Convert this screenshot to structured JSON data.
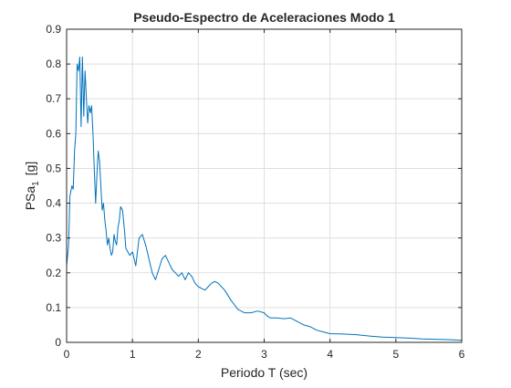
{
  "chart_data": {
    "type": "line",
    "title": "Pseudo-Espectro de Aceleraciones Modo 1",
    "xlabel": "Periodo T (sec)",
    "ylabel_main": "PSa",
    "ylabel_sub": "1",
    "ylabel_unit": "[g]",
    "xlim": [
      0,
      6
    ],
    "ylim": [
      0,
      0.9
    ],
    "xticks": [
      0,
      1,
      2,
      3,
      4,
      5,
      6
    ],
    "xtick_labels": [
      "0",
      "1",
      "2",
      "3",
      "4",
      "5",
      "6"
    ],
    "yticks": [
      0,
      0.1,
      0.2,
      0.3,
      0.4,
      0.5,
      0.6,
      0.7,
      0.8,
      0.9
    ],
    "ytick_labels": [
      "0",
      "0.1",
      "0.2",
      "0.3",
      "0.4",
      "0.5",
      "0.6",
      "0.7",
      "0.8",
      "0.9"
    ],
    "grid": true,
    "series": [
      {
        "color": "#0072BD",
        "x": [
          0.0,
          0.03,
          0.05,
          0.08,
          0.1,
          0.12,
          0.14,
          0.16,
          0.18,
          0.2,
          0.22,
          0.24,
          0.26,
          0.28,
          0.3,
          0.32,
          0.34,
          0.36,
          0.38,
          0.4,
          0.42,
          0.44,
          0.46,
          0.48,
          0.5,
          0.52,
          0.54,
          0.56,
          0.58,
          0.6,
          0.62,
          0.64,
          0.66,
          0.68,
          0.7,
          0.72,
          0.74,
          0.76,
          0.78,
          0.8,
          0.82,
          0.85,
          0.88,
          0.9,
          0.93,
          0.96,
          1.0,
          1.05,
          1.1,
          1.15,
          1.2,
          1.25,
          1.3,
          1.35,
          1.4,
          1.45,
          1.5,
          1.55,
          1.6,
          1.65,
          1.7,
          1.75,
          1.8,
          1.85,
          1.9,
          1.95,
          2.0,
          2.05,
          2.1,
          2.15,
          2.2,
          2.25,
          2.3,
          2.35,
          2.4,
          2.5,
          2.6,
          2.7,
          2.8,
          2.9,
          3.0,
          3.05,
          3.1,
          3.2,
          3.3,
          3.4,
          3.5,
          3.6,
          3.7,
          3.8,
          3.9,
          4.0,
          4.2,
          4.4,
          4.6,
          4.8,
          5.0,
          5.2,
          5.4,
          5.6,
          5.8,
          6.0
        ],
        "y": [
          0.22,
          0.28,
          0.42,
          0.45,
          0.44,
          0.55,
          0.6,
          0.8,
          0.78,
          0.82,
          0.62,
          0.82,
          0.65,
          0.78,
          0.7,
          0.63,
          0.68,
          0.66,
          0.68,
          0.6,
          0.5,
          0.4,
          0.48,
          0.55,
          0.52,
          0.45,
          0.38,
          0.4,
          0.35,
          0.32,
          0.28,
          0.3,
          0.27,
          0.25,
          0.26,
          0.31,
          0.29,
          0.28,
          0.33,
          0.35,
          0.39,
          0.38,
          0.32,
          0.27,
          0.26,
          0.25,
          0.26,
          0.22,
          0.3,
          0.31,
          0.28,
          0.24,
          0.2,
          0.18,
          0.21,
          0.24,
          0.25,
          0.23,
          0.21,
          0.2,
          0.19,
          0.2,
          0.18,
          0.2,
          0.19,
          0.17,
          0.16,
          0.155,
          0.15,
          0.16,
          0.17,
          0.175,
          0.17,
          0.16,
          0.15,
          0.12,
          0.095,
          0.085,
          0.085,
          0.09,
          0.085,
          0.075,
          0.07,
          0.07,
          0.068,
          0.07,
          0.06,
          0.05,
          0.045,
          0.035,
          0.03,
          0.025,
          0.024,
          0.022,
          0.018,
          0.015,
          0.014,
          0.012,
          0.01,
          0.009,
          0.008,
          0.006
        ]
      }
    ]
  }
}
